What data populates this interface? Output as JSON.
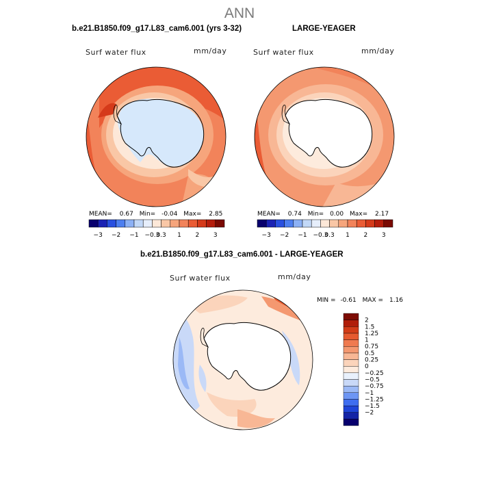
{
  "figure_title": "ANN",
  "panels": [
    {
      "case_title": "b.e21.B1850.f09_g17.L83_cam6.001 (yrs 3-32)",
      "variable_label": "Surf water flux",
      "units": "mm/day",
      "stats": {
        "mean_label": "MEAN=",
        "mean": "0.67",
        "min_label": "Min=",
        "min": "-0.04",
        "max_label": "Max=",
        "max": "2.85"
      }
    },
    {
      "case_title": "LARGE-YEAGER",
      "variable_label": "Surf water flux",
      "units": "mm/day",
      "stats": {
        "mean_label": "MEAN=",
        "mean": "0.74",
        "min_label": "Min=",
        "min": "0.00",
        "max_label": "Max=",
        "max": "2.17"
      }
    },
    {
      "case_title": "b.e21.B1850.f09_g17.L83_cam6.001 - LARGE-YEAGER",
      "variable_label": "Surf water flux",
      "units": "mm/day",
      "stats": {
        "min_label": "MIN =",
        "min": "-0.61",
        "max_label": "MAX =",
        "max": "1.16"
      }
    }
  ],
  "colorbar_main": {
    "colors": [
      "#08006e",
      "#1a22b4",
      "#2950e0",
      "#4d7ff0",
      "#8cb1f5",
      "#c2d8f7",
      "#e6eefb",
      "#fde8d8",
      "#f9c7a6",
      "#f6a57c",
      "#f2835a",
      "#ea5c35",
      "#d53a1a",
      "#b51d0c",
      "#7a0a03"
    ],
    "tick_labels": [
      "-3",
      "-2",
      "-1",
      "-0.3",
      "0.3",
      "1",
      "2",
      "3"
    ]
  },
  "colorbar_diff": {
    "colors": [
      "#08006e",
      "#1424a6",
      "#1f45d8",
      "#3f6ef0",
      "#6d96f4",
      "#9bb9f6",
      "#c9d9f8",
      "#e9f1fc",
      "#fdebdd",
      "#fbd4bb",
      "#f8b795",
      "#f49870",
      "#ef7a50",
      "#e65a30",
      "#d23c18",
      "#b01e0a",
      "#7d0c04"
    ],
    "tick_labels": [
      "2",
      "1.5",
      "1.25",
      "1",
      "0.75",
      "0.5",
      "0.25",
      "0",
      "-0.25",
      "-0.5",
      "-0.75",
      "-1",
      "-1.25",
      "-1.5",
      "-2"
    ]
  }
}
